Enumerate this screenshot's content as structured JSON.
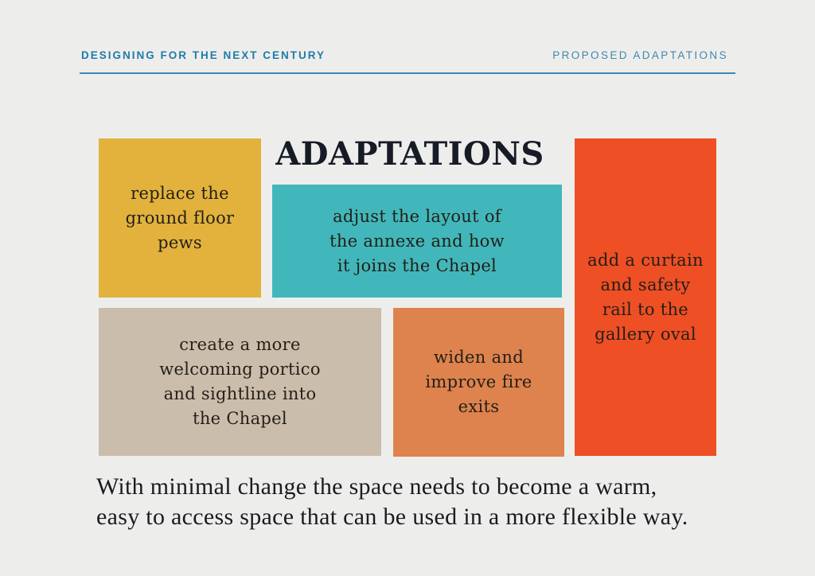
{
  "page": {
    "background_color": "#edeeec"
  },
  "header": {
    "left_label": "DESIGNING FOR THE NEXT CENTURY",
    "right_label": "PROPOSED ADAPTATIONS",
    "text_color": "#1f7ba8",
    "rule_color": "#4285b1"
  },
  "main": {
    "title": "ADAPTATIONS",
    "title_color": "#161b26",
    "card_text_color": "#231f17",
    "cards": [
      {
        "name": "replace-pews",
        "text": "replace the\nground floor\npews",
        "color": "#e2b23d"
      },
      {
        "name": "annexe-layout",
        "text": "adjust the layout of\nthe annexe and how\nit joins the Chapel",
        "color": "#42b7bb"
      },
      {
        "name": "gallery-rail",
        "text": "add a curtain\nand safety\nrail to the\ngallery oval",
        "color": "#ee4f25"
      },
      {
        "name": "portico-sightline",
        "text": "create a more\nwelcoming portico\nand sightline into\nthe Chapel",
        "color": "#cbbdac"
      },
      {
        "name": "fire-exits",
        "text": "widen and\nimprove fire\nexits",
        "color": "#de834e"
      }
    ],
    "summary": "With minimal change the space needs to become a warm,\neasy to access space that can be used in a more flexible way.",
    "summary_color": "#1b1b21"
  }
}
